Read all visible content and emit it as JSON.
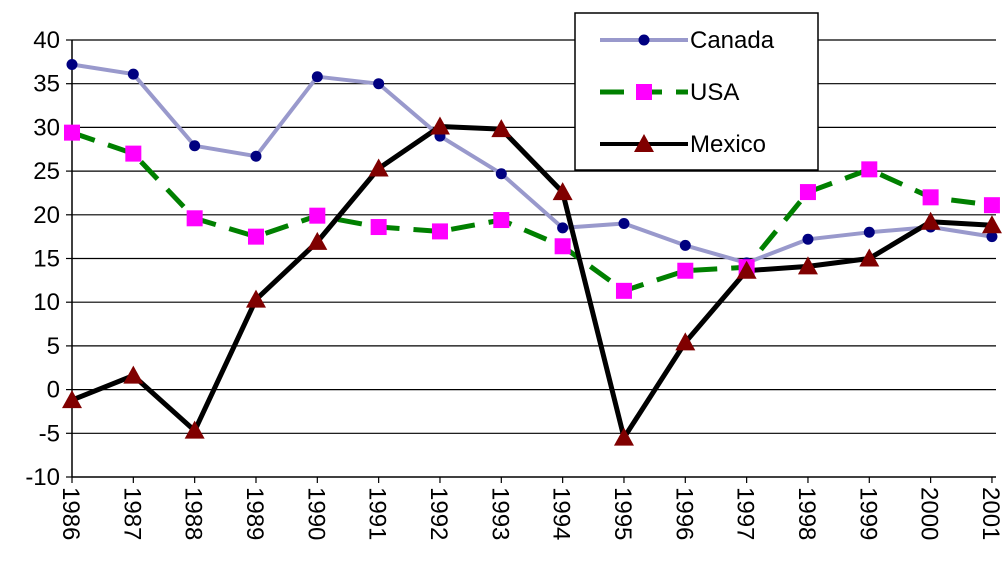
{
  "chart_data": {
    "type": "line",
    "title": "",
    "xlabel": "",
    "ylabel": "",
    "x": [
      "1986",
      "1987",
      "1988",
      "1989",
      "1990",
      "1991",
      "1992",
      "1993",
      "1994",
      "1995",
      "1996",
      "1997",
      "1998",
      "1999",
      "2000",
      "2001"
    ],
    "ylim": [
      -10,
      40
    ],
    "yticks": [
      40,
      35,
      30,
      25,
      20,
      15,
      10,
      5,
      0,
      -5,
      -10
    ],
    "grid": true,
    "legend_placement": "top-right",
    "series": [
      {
        "name": "Canada",
        "color": "#9999cc",
        "marker_color": "#000080",
        "marker": "circle",
        "line_style": "solid",
        "values": [
          37.2,
          36.1,
          27.9,
          26.7,
          35.8,
          35.0,
          29.0,
          24.7,
          18.5,
          19.0,
          16.5,
          14.5,
          17.2,
          18.0,
          18.6,
          17.5
        ]
      },
      {
        "name": "USA",
        "color": "#008000",
        "marker_color": "#ff00ff",
        "marker": "square",
        "line_style": "dashed",
        "values": [
          29.4,
          27.0,
          19.6,
          17.5,
          19.9,
          18.6,
          18.1,
          19.4,
          16.4,
          11.3,
          13.6,
          14.0,
          22.6,
          25.2,
          22.0,
          21.1
        ]
      },
      {
        "name": "Mexico",
        "color": "#000000",
        "marker_color": "#800000",
        "marker": "triangle",
        "line_style": "solid",
        "values": [
          -1.2,
          1.6,
          -4.7,
          10.3,
          16.9,
          25.3,
          30.1,
          29.8,
          22.6,
          -5.5,
          5.4,
          13.6,
          14.1,
          15.0,
          19.2,
          18.8
        ]
      }
    ]
  }
}
